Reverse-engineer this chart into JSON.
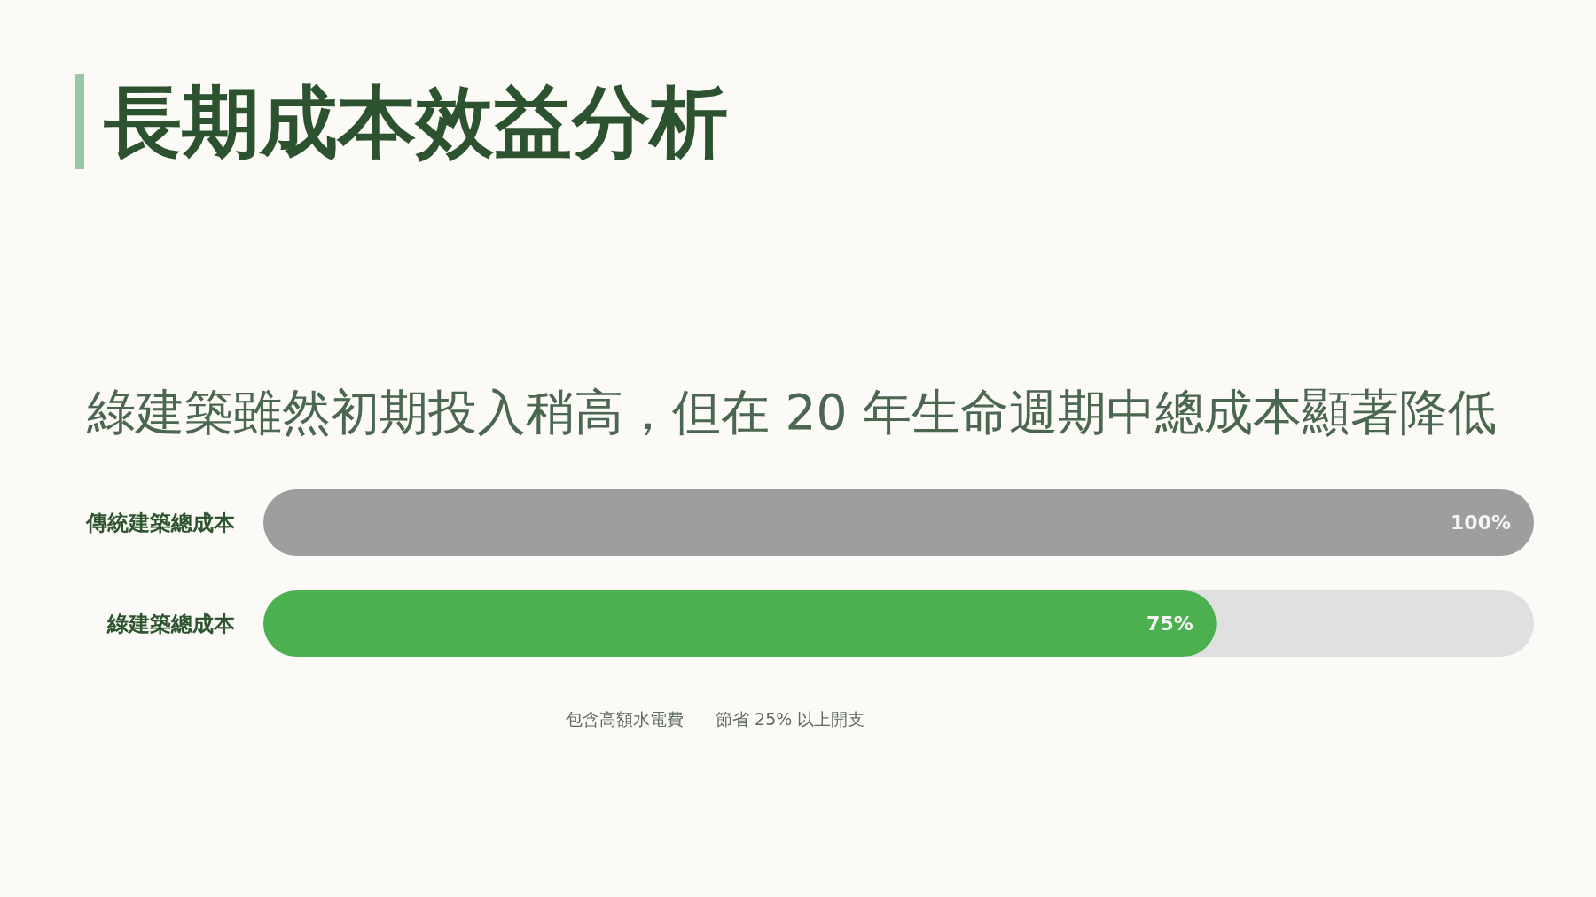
{
  "chart_data": {
    "type": "bar",
    "orientation": "horizontal",
    "title": "長期成本效益分析",
    "subtitle": "綠建築雖然初期投入稍高，但在 20 年生命週期中總成本顯著降低",
    "categories": [
      "傳統建築總成本",
      "綠建築總成本"
    ],
    "values": [
      100,
      75
    ],
    "colors": [
      "#9e9e9e",
      "#4caf50"
    ],
    "value_labels": [
      "100%",
      "75%"
    ],
    "xlim": [
      0,
      100
    ],
    "annotations": [
      "包含高額水電費",
      "節省 25% 以上開支"
    ]
  }
}
